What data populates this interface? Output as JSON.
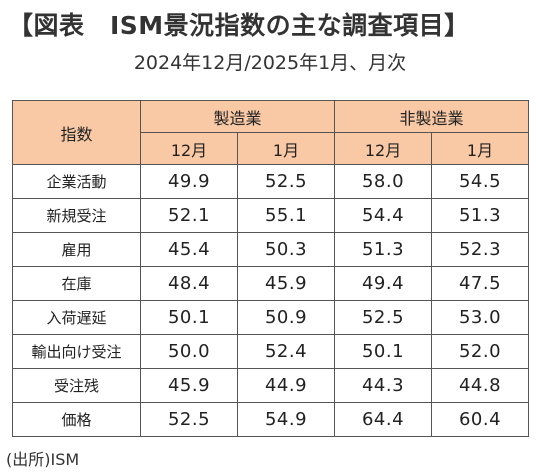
{
  "title": "【図表　ISM景況指数の主な調査項目】",
  "subtitle": "2024年12月/2025年1月、月次",
  "table": {
    "row_header": "指数",
    "groups": [
      "製造業",
      "非製造業"
    ],
    "months": [
      "12月",
      "1月",
      "12月",
      "1月"
    ],
    "rows": [
      {
        "label": "企業活動",
        "values": [
          "49.9",
          "52.5",
          "58.0",
          "54.5"
        ]
      },
      {
        "label": "新規受注",
        "values": [
          "52.1",
          "55.1",
          "54.4",
          "51.3"
        ]
      },
      {
        "label": "雇用",
        "values": [
          "45.4",
          "50.3",
          "51.3",
          "52.3"
        ]
      },
      {
        "label": "在庫",
        "values": [
          "48.4",
          "45.9",
          "49.4",
          "47.5"
        ]
      },
      {
        "label": "入荷遅延",
        "values": [
          "50.1",
          "50.9",
          "52.5",
          "53.0"
        ]
      },
      {
        "label": "輸出向け受注",
        "values": [
          "50.0",
          "52.4",
          "50.1",
          "52.0"
        ]
      },
      {
        "label": "受注残",
        "values": [
          "45.9",
          "44.9",
          "44.3",
          "44.8"
        ]
      },
      {
        "label": "価格",
        "values": [
          "52.5",
          "54.9",
          "64.4",
          "60.4"
        ]
      }
    ]
  },
  "source": "(出所)ISM",
  "colors": {
    "header_bg": "#f8c9a4",
    "border": "#555555"
  }
}
